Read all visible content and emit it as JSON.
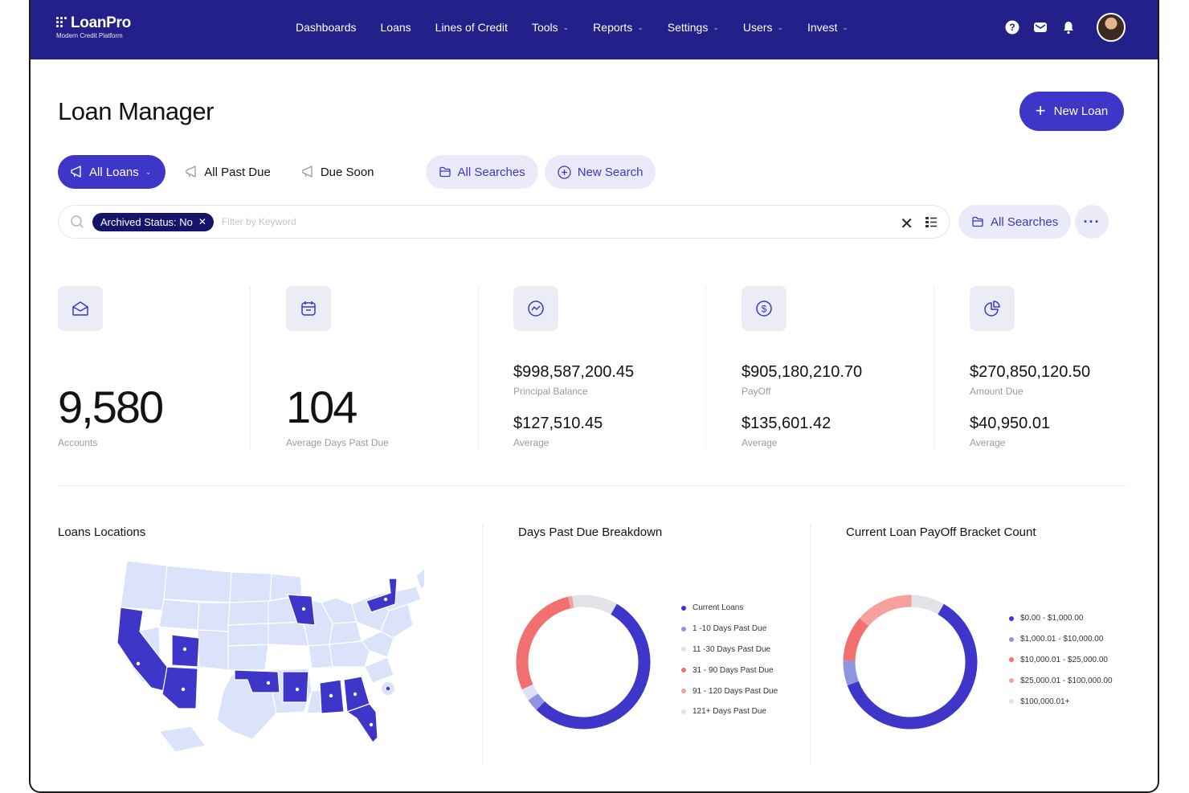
{
  "brand": {
    "name": "LoanPro",
    "tagline": "Modern Credit Platform"
  },
  "nav": [
    {
      "label": "Dashboards",
      "dropdown": false
    },
    {
      "label": "Loans",
      "dropdown": false
    },
    {
      "label": "Lines of Credit",
      "dropdown": false
    },
    {
      "label": "Tools",
      "dropdown": true
    },
    {
      "label": "Reports",
      "dropdown": true
    },
    {
      "label": "Settings",
      "dropdown": true
    },
    {
      "label": "Users",
      "dropdown": true
    },
    {
      "label": "Invest",
      "dropdown": true
    }
  ],
  "header_icons": [
    "help-icon",
    "mail-icon",
    "bell-icon"
  ],
  "page": {
    "title": "Loan Manager",
    "new_loan_label": "New Loan"
  },
  "filters": {
    "all_loans": "All Loans",
    "all_past_due": "All Past Due",
    "due_soon": "Due Soon",
    "all_searches": "All Searches",
    "new_search": "New Search"
  },
  "search": {
    "chip_label": "Archived Status: No",
    "placeholder": "Filter by Keyword",
    "value": "",
    "all_searches": "All Searches"
  },
  "stats": {
    "accounts": {
      "value": "9,580",
      "label": "Accounts"
    },
    "days_past_due": {
      "value": "104",
      "label": "Average Days Past Due"
    },
    "principal": {
      "value": "$998,587,200.45",
      "label": "Principal Balance",
      "avg": "$127,510.45",
      "avg_label": "Average"
    },
    "payoff": {
      "value": "$905,180,210.70",
      "label": "PayOff",
      "avg": "$135,601.42",
      "avg_label": "Average"
    },
    "amount_due": {
      "value": "$270,850,120.50",
      "label": "Amount Due",
      "avg": "$40,950.01",
      "avg_label": "Average"
    }
  },
  "sections": {
    "locations": "Loans Locations",
    "dpd": "Days Past Due Breakdown",
    "payoff": "Current Loan PayOff Bracket Count"
  },
  "colors": {
    "primary": "#3d36c9",
    "nav_bg": "#23208a",
    "light": "#ebeaf9"
  },
  "chart_data": [
    {
      "type": "pie",
      "title": "Days Past Due Breakdown",
      "categories": [
        "Current Loans",
        "1 -10 Days Past Due",
        "11 -30 Days Past Due",
        "31 - 90 Days Past Due",
        "91 - 120 Days Past Due",
        "121+ Days Past Due"
      ],
      "values": [
        54,
        3,
        3,
        28,
        1,
        11
      ],
      "colors": [
        "#3d36c9",
        "#8e95e0",
        "#dde1f5",
        "#f37070",
        "#f7a19c",
        "#e1e3e8"
      ],
      "legend": "right"
    },
    {
      "type": "pie",
      "title": "Current Loan PayOff Bracket Count",
      "categories": [
        "$0.00 - $1,000.00",
        "$1,000.01 - $10,000.00",
        "$10,000.01 - $25,000.00",
        "$25,000.01 - $100,000.00",
        "$100,000.01+"
      ],
      "values": [
        61,
        6,
        11,
        14,
        8
      ],
      "colors": [
        "#3d36c9",
        "#8e95e0",
        "#f37070",
        "#f7a19c",
        "#e1e3e8"
      ],
      "legend": "right"
    }
  ]
}
